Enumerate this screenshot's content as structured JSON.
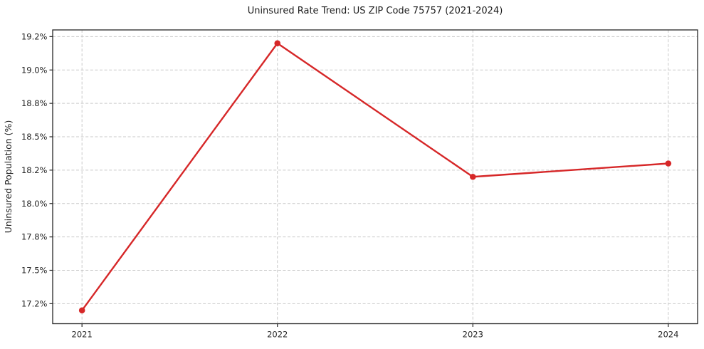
{
  "chart_data": {
    "type": "line",
    "title": "Uninsured Rate Trend: US ZIP Code 75757 (2021-2024)",
    "xlabel": "",
    "ylabel": "Uninsured Population (%)",
    "categories": [
      "2021",
      "2022",
      "2023",
      "2024"
    ],
    "x": [
      2021,
      2022,
      2023,
      2024
    ],
    "values": [
      17.2,
      19.2,
      18.2,
      18.3
    ],
    "xlim": [
      2020.85,
      2024.15
    ],
    "ylim": [
      17.1,
      19.3
    ],
    "x_ticks": [
      {
        "value": 2021,
        "label": "2021"
      },
      {
        "value": 2022,
        "label": "2022"
      },
      {
        "value": 2023,
        "label": "2023"
      },
      {
        "value": 2024,
        "label": "2024"
      }
    ],
    "y_ticks": [
      {
        "value": 17.25,
        "label": "17.2%"
      },
      {
        "value": 17.5,
        "label": "17.5%"
      },
      {
        "value": 17.75,
        "label": "17.8%"
      },
      {
        "value": 18.0,
        "label": "18.0%"
      },
      {
        "value": 18.25,
        "label": "18.2%"
      },
      {
        "value": 18.5,
        "label": "18.5%"
      },
      {
        "value": 18.75,
        "label": "18.8%"
      },
      {
        "value": 19.0,
        "label": "19.0%"
      },
      {
        "value": 19.25,
        "label": "19.2%"
      }
    ],
    "grid": true,
    "grid_style": "dashed",
    "legend": "none",
    "style": {
      "line_color": "#d62728",
      "marker": "circle",
      "grid_color": "#c9c9c9",
      "axis_color": "#262626",
      "text_color": "#262626",
      "background_color": "#ffffff"
    }
  }
}
